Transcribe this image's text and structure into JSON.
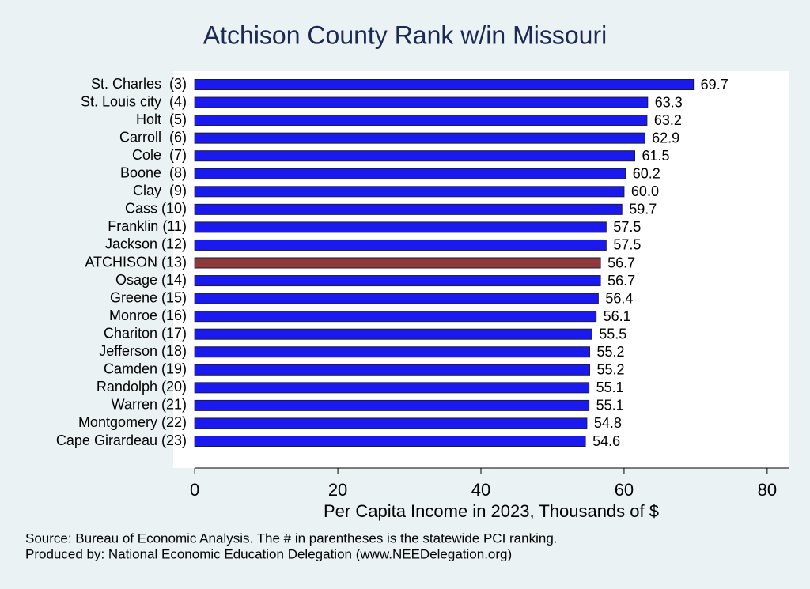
{
  "chart_data": {
    "type": "barh",
    "title": "Atchison County Rank w/in Missouri",
    "x_label": "Per Capita Income in 2023, Thousands of $",
    "notes": [
      "Source: Bureau of Economic Analysis. The # in parentheses is the statewide PCI ranking.",
      "Produced by: National Economic Education Delegation (www.NEEDelegation.org)"
    ],
    "categories": [
      "St. Charles  (3)",
      "St. Louis city  (4)",
      "Holt  (5)",
      "Carroll  (6)",
      "Cole  (7)",
      "Boone  (8)",
      "Clay  (9)",
      "Cass (10)",
      "Franklin (11)",
      "Jackson (12)",
      "ATCHISON (13)",
      "Osage (14)",
      "Greene (15)",
      "Monroe (16)",
      "Chariton (17)",
      "Jefferson (18)",
      "Camden (19)",
      "Randolph (20)",
      "Warren (21)",
      "Montgomery (22)",
      "Cape Girardeau (23)"
    ],
    "values": [
      69.7,
      63.3,
      63.2,
      62.9,
      61.5,
      60.2,
      60.0,
      59.7,
      57.5,
      57.5,
      56.7,
      56.7,
      56.4,
      56.1,
      55.5,
      55.2,
      55.2,
      55.1,
      55.1,
      54.8,
      54.6
    ],
    "value_labels": [
      "69.7",
      "63.3",
      "63.2",
      "62.9",
      "61.5",
      "60.2",
      "60.0",
      "59.7",
      "57.5",
      "57.5",
      "56.7",
      "56.7",
      "56.4",
      "56.1",
      "55.5",
      "55.2",
      "55.2",
      "55.1",
      "55.1",
      "54.8",
      "54.6"
    ],
    "colors": [
      "#1a1aee",
      "#1a1aee",
      "#1a1aee",
      "#1a1aee",
      "#1a1aee",
      "#1a1aee",
      "#1a1aee",
      "#1a1aee",
      "#1a1aee",
      "#1a1aee",
      "#8f3a3a",
      "#1a1aee",
      "#1a1aee",
      "#1a1aee",
      "#1a1aee",
      "#1a1aee",
      "#1a1aee",
      "#1a1aee",
      "#1a1aee",
      "#1a1aee",
      "#1a1aee"
    ],
    "xlim": [
      -3,
      83
    ],
    "xticks": [
      0,
      20,
      40,
      60,
      80
    ],
    "grid": false
  }
}
